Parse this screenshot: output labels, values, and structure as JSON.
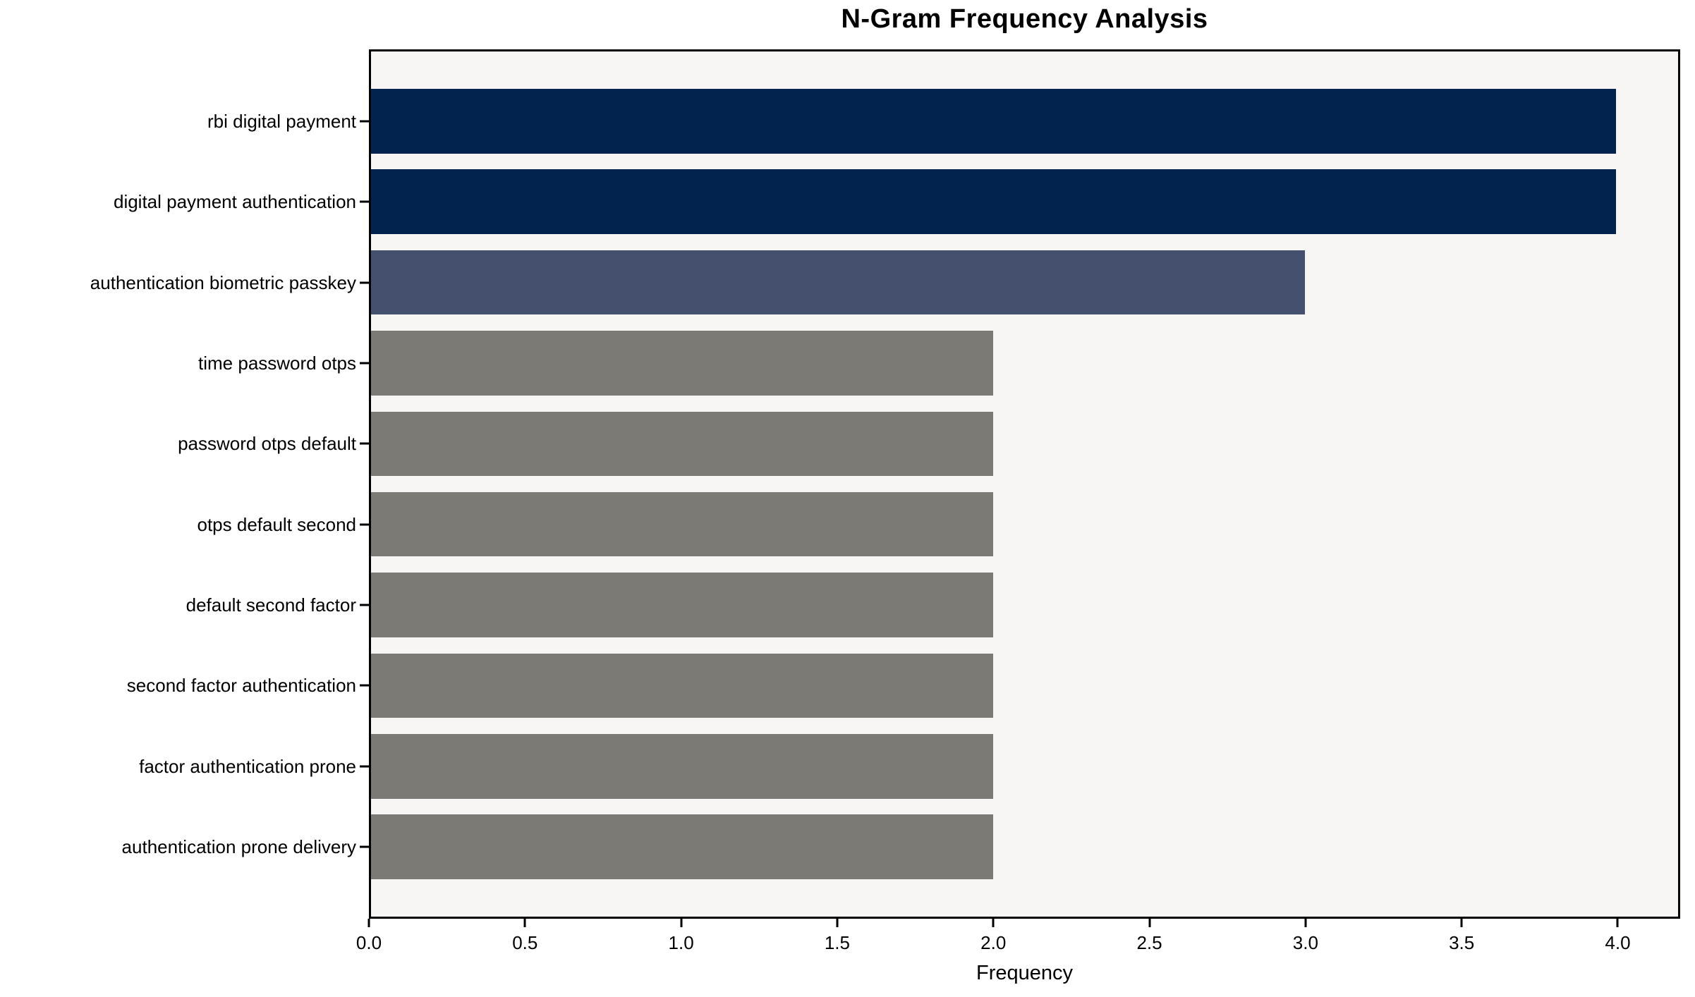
{
  "chart_data": {
    "type": "bar",
    "orientation": "horizontal",
    "title": "N-Gram Frequency Analysis",
    "xlabel": "Frequency",
    "ylabel": "",
    "categories": [
      "rbi digital payment",
      "digital payment authentication",
      "authentication biometric passkey",
      "time password otps",
      "password otps default",
      "otps default second",
      "default second factor",
      "second factor authentication",
      "factor authentication prone",
      "authentication prone delivery"
    ],
    "values": [
      4,
      4,
      3,
      2,
      2,
      2,
      2,
      2,
      2,
      2
    ],
    "bar_colors": [
      "#02234E",
      "#02234E",
      "#45506E",
      "#7B7A75",
      "#7B7A75",
      "#7B7A75",
      "#7B7A75",
      "#7B7A75",
      "#7B7A75",
      "#7B7A75"
    ],
    "xlim": [
      0,
      4.2
    ],
    "xticks": [
      0,
      0.5,
      1,
      1.5,
      2,
      2.5,
      3,
      3.5,
      4
    ],
    "xtick_labels": [
      "0.0",
      "0.5",
      "1.0",
      "1.5",
      "2.0",
      "2.5",
      "3.0",
      "3.5",
      "4.0"
    ],
    "grid": false,
    "legend": null,
    "colors": {
      "plot_background": "#F7F6F5",
      "figure_background": "#FFFFFF",
      "spine": "#000000",
      "text": "#000000"
    }
  }
}
